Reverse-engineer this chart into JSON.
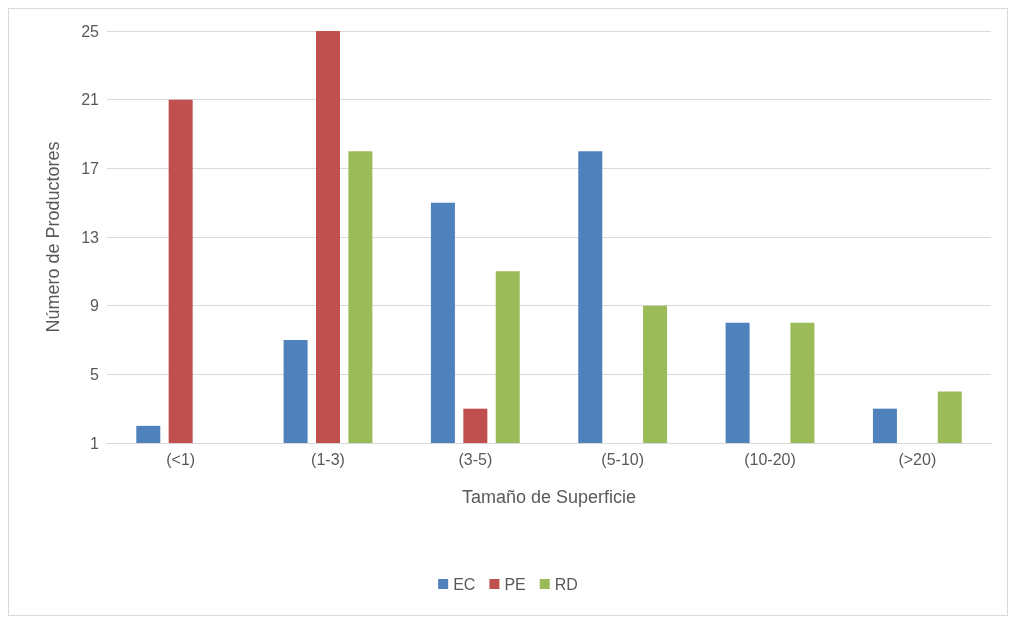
{
  "chart_data": {
    "type": "bar",
    "xlabel": "Tamaño de Superficie",
    "ylabel": "Número de Productores",
    "categories": [
      "(<1)",
      "(1-3)",
      "(3-5)",
      "(5-10)",
      "(10-20)",
      "(>20)"
    ],
    "series": [
      {
        "name": "EC",
        "color": "#4f81bd",
        "values": [
          2,
          7,
          15,
          18,
          8,
          3
        ]
      },
      {
        "name": "PE",
        "color": "#c0504d",
        "values": [
          21,
          25,
          3,
          null,
          1,
          1
        ]
      },
      {
        "name": "RD",
        "color": "#9bbb59",
        "values": [
          null,
          18,
          11,
          9,
          8,
          4
        ]
      }
    ],
    "ylim": [
      1,
      25
    ],
    "yticks": [
      1,
      5,
      9,
      13,
      17,
      21,
      25
    ],
    "grid": "y",
    "legend": "bottom"
  }
}
